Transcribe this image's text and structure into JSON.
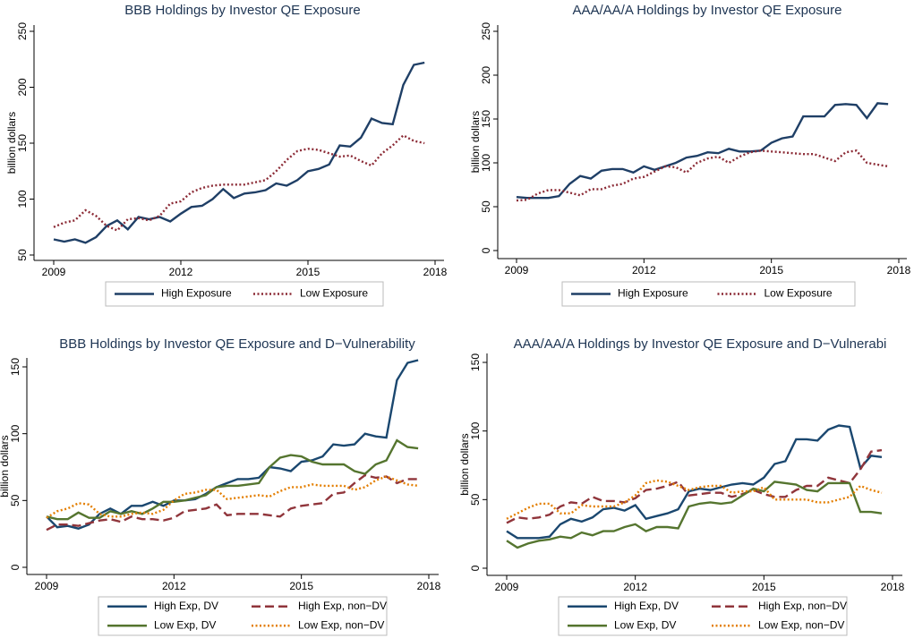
{
  "chart_data": [
    {
      "type": "line",
      "title": "BBB Holdings by Investor QE Exposure",
      "y_label": "billion dollars",
      "x": [
        2009,
        2009.25,
        2009.5,
        2009.75,
        2010,
        2010.25,
        2010.5,
        2010.75,
        2011,
        2011.25,
        2011.5,
        2011.75,
        2012,
        2012.25,
        2012.5,
        2012.75,
        2013,
        2013.25,
        2013.5,
        2013.75,
        2014,
        2014.25,
        2014.5,
        2014.75,
        2015,
        2015.25,
        2015.5,
        2015.75,
        2016,
        2016.25,
        2016.5,
        2016.75,
        2017,
        2017.25,
        2017.5,
        2017.75
      ],
      "xlim": [
        2009,
        2018
      ],
      "xticks": [
        2009,
        2012,
        2015,
        2018
      ],
      "ylim": [
        50,
        250
      ],
      "yticks": [
        50,
        100,
        150,
        200,
        250
      ],
      "series": [
        {
          "name": "High Exposure",
          "color": "#1f3f66",
          "style": "solid",
          "values": [
            64,
            62,
            64,
            61,
            66,
            76,
            81,
            73,
            84,
            82,
            84,
            80,
            87,
            93,
            94,
            100,
            109,
            101,
            105,
            106,
            108,
            114,
            112,
            117,
            125,
            127,
            131,
            148,
            147,
            155,
            172,
            168,
            167,
            202,
            220,
            222
          ]
        },
        {
          "name": "Low Exposure",
          "color": "#8b2a35",
          "style": "dotted",
          "values": [
            75,
            79,
            81,
            90,
            85,
            76,
            72,
            82,
            83,
            81,
            85,
            96,
            98,
            106,
            110,
            112,
            113,
            113,
            113,
            115,
            117,
            125,
            135,
            143,
            145,
            144,
            141,
            138,
            139,
            134,
            130,
            141,
            148,
            157,
            152,
            150
          ]
        }
      ]
    },
    {
      "type": "line",
      "title": "AAA/AA/A Holdings by Investor QE Exposure",
      "y_label": "billion dollars",
      "x": [
        2009,
        2009.25,
        2009.5,
        2009.75,
        2010,
        2010.25,
        2010.5,
        2010.75,
        2011,
        2011.25,
        2011.5,
        2011.75,
        2012,
        2012.25,
        2012.5,
        2012.75,
        2013,
        2013.25,
        2013.5,
        2013.75,
        2014,
        2014.25,
        2014.5,
        2014.75,
        2015,
        2015.25,
        2015.5,
        2015.75,
        2016,
        2016.25,
        2016.5,
        2016.75,
        2017,
        2017.25,
        2017.5,
        2017.75
      ],
      "xlim": [
        2009,
        2018
      ],
      "xticks": [
        2009,
        2012,
        2015,
        2018
      ],
      "ylim": [
        0,
        250
      ],
      "yticks": [
        0,
        50,
        100,
        150,
        200,
        250
      ],
      "series": [
        {
          "name": "High Exposure",
          "color": "#1f3f66",
          "style": "solid",
          "values": [
            61,
            60,
            60,
            60,
            62,
            76,
            85,
            82,
            91,
            93,
            93,
            89,
            96,
            92,
            96,
            100,
            106,
            108,
            112,
            111,
            116,
            113,
            113,
            114,
            123,
            128,
            130,
            153,
            153,
            153,
            166,
            167,
            166,
            151,
            168,
            167
          ]
        },
        {
          "name": "Low Exposure",
          "color": "#8b2a35",
          "style": "dotted",
          "values": [
            57,
            58,
            65,
            69,
            69,
            66,
            63,
            70,
            70,
            74,
            76,
            82,
            84,
            90,
            96,
            95,
            89,
            100,
            105,
            107,
            100,
            107,
            112,
            114,
            113,
            112,
            111,
            110,
            110,
            106,
            102,
            112,
            114,
            100,
            98,
            96
          ]
        }
      ]
    },
    {
      "type": "line",
      "title": "BBB Holdings by Investor QE Exposure and D−Vulnerability",
      "y_label": "billion dollars",
      "x": [
        2009,
        2009.25,
        2009.5,
        2009.75,
        2010,
        2010.25,
        2010.5,
        2010.75,
        2011,
        2011.25,
        2011.5,
        2011.75,
        2012,
        2012.25,
        2012.5,
        2012.75,
        2013,
        2013.25,
        2013.5,
        2013.75,
        2014,
        2014.25,
        2014.5,
        2014.75,
        2015,
        2015.25,
        2015.5,
        2015.75,
        2016,
        2016.25,
        2016.5,
        2016.75,
        2017,
        2017.25,
        2017.5,
        2017.75
      ],
      "xlim": [
        2009,
        2018
      ],
      "xticks": [
        2009,
        2012,
        2015,
        2018
      ],
      "ylim": [
        0,
        150
      ],
      "yticks": [
        0,
        50,
        100,
        150
      ],
      "series": [
        {
          "name": "High Exp, DV",
          "color": "#1a476f",
          "style": "solid",
          "values": [
            38,
            30,
            31,
            29,
            32,
            40,
            44,
            40,
            46,
            46,
            49,
            46,
            50,
            50,
            51,
            55,
            60,
            63,
            66,
            66,
            67,
            75,
            74,
            72,
            79,
            80,
            83,
            92,
            91,
            92,
            100,
            98,
            97,
            140,
            153,
            155
          ]
        },
        {
          "name": "High Exp, non−DV",
          "color": "#90353b",
          "style": "dashed",
          "values": [
            28,
            32,
            32,
            31,
            33,
            35,
            36,
            34,
            38,
            36,
            36,
            35,
            37,
            42,
            43,
            44,
            47,
            39,
            40,
            40,
            40,
            39,
            38,
            44,
            46,
            47,
            48,
            55,
            56,
            63,
            69,
            67,
            68,
            63,
            66,
            66
          ]
        },
        {
          "name": "Low Exp, DV",
          "color": "#55752f",
          "style": "solid",
          "values": [
            38,
            36,
            36,
            41,
            37,
            37,
            42,
            40,
            42,
            40,
            44,
            49,
            49,
            50,
            52,
            54,
            60,
            61,
            61,
            62,
            63,
            75,
            82,
            84,
            83,
            79,
            77,
            77,
            77,
            72,
            70,
            77,
            80,
            95,
            90,
            89
          ]
        },
        {
          "name": "Low Exp, non−DV",
          "color": "#e37e00",
          "style": "dotted",
          "values": [
            37,
            42,
            44,
            48,
            47,
            40,
            38,
            38,
            40,
            41,
            40,
            43,
            50,
            55,
            56,
            58,
            58,
            51,
            52,
            53,
            54,
            53,
            57,
            60,
            60,
            62,
            61,
            61,
            61,
            58,
            60,
            65,
            68,
            65,
            62,
            61
          ]
        }
      ]
    },
    {
      "type": "line",
      "title": "AAA/AA/A Holdings by Investor QE Exposure and D−Vulnerabi",
      "y_label": "billion dollars",
      "x": [
        2009,
        2009.25,
        2009.5,
        2009.75,
        2010,
        2010.25,
        2010.5,
        2010.75,
        2011,
        2011.25,
        2011.5,
        2011.75,
        2012,
        2012.25,
        2012.5,
        2012.75,
        2013,
        2013.25,
        2013.5,
        2013.75,
        2014,
        2014.25,
        2014.5,
        2014.75,
        2015,
        2015.25,
        2015.5,
        2015.75,
        2016,
        2016.25,
        2016.5,
        2016.75,
        2017,
        2017.25,
        2017.5,
        2017.75
      ],
      "xlim": [
        2009,
        2018
      ],
      "xticks": [
        2009,
        2012,
        2015,
        2018
      ],
      "ylim": [
        0,
        150
      ],
      "yticks": [
        0,
        50,
        100,
        150
      ],
      "series": [
        {
          "name": "High Exp, DV",
          "color": "#1a476f",
          "style": "solid",
          "values": [
            27,
            22,
            22,
            22,
            23,
            32,
            36,
            34,
            37,
            43,
            44,
            42,
            46,
            36,
            38,
            40,
            43,
            56,
            58,
            57,
            59,
            61,
            62,
            61,
            66,
            76,
            78,
            94,
            94,
            93,
            101,
            104,
            103,
            73,
            82,
            81
          ]
        },
        {
          "name": "High Exp, non−DV",
          "color": "#90353b",
          "style": "dashed",
          "values": [
            33,
            37,
            36,
            37,
            39,
            45,
            48,
            47,
            52,
            49,
            49,
            48,
            51,
            57,
            58,
            60,
            63,
            53,
            54,
            55,
            55,
            52,
            54,
            57,
            54,
            52,
            52,
            57,
            60,
            60,
            66,
            64,
            62,
            72,
            85,
            86
          ]
        },
        {
          "name": "Low Exp, DV",
          "color": "#55752f",
          "style": "solid",
          "values": [
            20,
            15,
            18,
            20,
            21,
            23,
            22,
            26,
            24,
            27,
            27,
            30,
            32,
            27,
            30,
            30,
            29,
            45,
            47,
            48,
            47,
            48,
            53,
            58,
            56,
            63,
            62,
            61,
            57,
            56,
            62,
            62,
            62,
            41,
            41,
            40
          ]
        },
        {
          "name": "Low Exp, non−DV",
          "color": "#e37e00",
          "style": "dotted",
          "values": [
            36,
            40,
            44,
            47,
            47,
            40,
            40,
            46,
            45,
            45,
            45,
            48,
            53,
            62,
            64,
            63,
            60,
            57,
            59,
            60,
            60,
            55,
            56,
            56,
            59,
            50,
            50,
            50,
            50,
            48,
            48,
            50,
            52,
            60,
            57,
            55
          ]
        }
      ]
    }
  ]
}
